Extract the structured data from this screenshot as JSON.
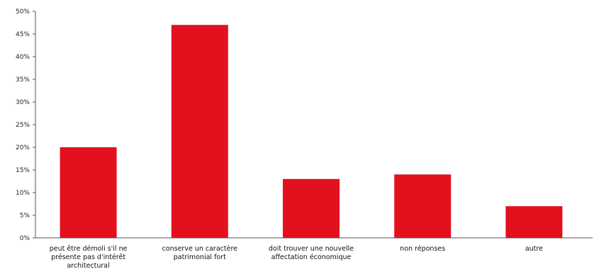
{
  "chart_data": {
    "type": "bar",
    "categories": [
      "peut être démoli  s'il ne présente pas d'intérêt architectural",
      "conserve un caractère patrimonial fort",
      "doit trouver  une nouvelle affectation économique",
      "non réponses",
      "autre"
    ],
    "values": [
      20,
      47,
      13,
      14,
      7
    ],
    "ylim": [
      0,
      50
    ],
    "yticks": [
      "0%",
      "5%",
      "10%",
      "15%",
      "20%",
      "25%",
      "30%",
      "35%",
      "40%",
      "45%",
      "50%"
    ],
    "title": "",
    "xlabel": "",
    "ylabel": "",
    "grid": false,
    "legend": "none",
    "bar_color": "#e3101e"
  }
}
